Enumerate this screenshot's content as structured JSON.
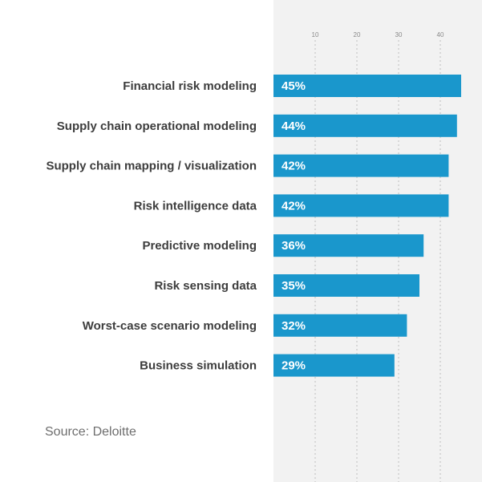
{
  "chart_data": {
    "type": "bar",
    "orientation": "horizontal",
    "categories": [
      "Financial risk modeling",
      "Supply chain operational modeling",
      "Supply chain mapping / visualization",
      "Risk intelligence data",
      "Predictive modeling",
      "Risk sensing data",
      "Worst-case scenario modeling",
      "Business simulation"
    ],
    "values": [
      45,
      44,
      42,
      42,
      36,
      35,
      32,
      29
    ],
    "value_labels": [
      "45%",
      "44%",
      "42%",
      "42%",
      "36%",
      "35%",
      "32%",
      "29%"
    ],
    "x_ticks": [
      "10",
      "20",
      "30",
      "40"
    ],
    "x_tick_values": [
      10,
      20,
      30,
      40
    ],
    "xlim": [
      0,
      45
    ],
    "grid": true,
    "bar_color": "#1a97cc",
    "panel_color": "#f2f2f2",
    "label_color": "#3d3d3d"
  },
  "source": "Source: Deloitte"
}
